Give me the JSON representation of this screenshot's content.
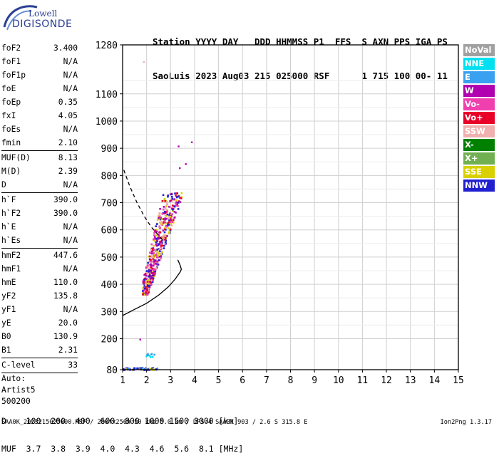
{
  "logo": {
    "line1": "Lowell",
    "line2": "DIGISONDE"
  },
  "header": {
    "line1": "Station YYYY DAY   DDD HHMMSS P1  FFS  S AXN PPS IGA PS",
    "line2": "SaoLuis 2023 Aug03 215 025000 RSF      1 715 100 00- 11"
  },
  "params": [
    {
      "k": "foF2",
      "v": "3.400"
    },
    {
      "k": "foF1",
      "v": "N/A"
    },
    {
      "k": "foF1p",
      "v": "N/A"
    },
    {
      "k": "foE",
      "v": "N/A"
    },
    {
      "k": "foEp",
      "v": "0.35"
    },
    {
      "k": "fxI",
      "v": "4.05"
    },
    {
      "k": "foEs",
      "v": "N/A"
    },
    {
      "k": "fmin",
      "v": "2.10"
    },
    {
      "k": "MUF(D)",
      "v": "8.13"
    },
    {
      "k": "M(D)",
      "v": "2.39"
    },
    {
      "k": "D",
      "v": "N/A"
    },
    {
      "k": "h`F",
      "v": "390.0"
    },
    {
      "k": "h`F2",
      "v": "390.0"
    },
    {
      "k": "h`E",
      "v": "N/A"
    },
    {
      "k": "h`Es",
      "v": "N/A"
    },
    {
      "k": "hmF2",
      "v": "447.6"
    },
    {
      "k": "hmF1",
      "v": "N/A"
    },
    {
      "k": "hmE",
      "v": "110.0"
    },
    {
      "k": "yF2",
      "v": "135.8"
    },
    {
      "k": "yF1",
      "v": "N/A"
    },
    {
      "k": "yE",
      "v": "20.0"
    },
    {
      "k": "B0",
      "v": "130.9"
    },
    {
      "k": "B1",
      "v": "2.31"
    },
    {
      "k": "C-level",
      "v": "33"
    }
  ],
  "auto": [
    "Auto:",
    "Artist5",
    "500200"
  ],
  "legend": [
    {
      "label": "NoVal",
      "color": "#a0a0a0"
    },
    {
      "label": "NNE",
      "color": "#00e0f0"
    },
    {
      "label": "E",
      "color": "#3aa0f0"
    },
    {
      "label": "W",
      "color": "#b000b0"
    },
    {
      "label": "Vo-",
      "color": "#f040b0"
    },
    {
      "label": "Vo+",
      "color": "#e80028"
    },
    {
      "label": "SSW",
      "color": "#f0b0b0"
    },
    {
      "label": "X-",
      "color": "#008000"
    },
    {
      "label": "X+",
      "color": "#70b050"
    },
    {
      "label": "SSE",
      "color": "#d8d000"
    },
    {
      "label": "NNW",
      "color": "#2020d0"
    }
  ],
  "muf_table": {
    "row1": "D    100  200  400  600  800 1000 1500 3000 [km]",
    "row2": "MUF  3.7  3.8  3.9  4.0  4.3  4.6  5.6  8.1 [MHz]"
  },
  "footer": {
    "left": "SAA0K_2023215025000.RSF / 280fx256h 50 kHz 5.0 km / DPS-4 SAA0K 903 / 2.6 S 315.8 E",
    "right": "Ion2Png 1.3.17"
  },
  "chart_data": {
    "type": "scatter",
    "xlabel": "",
    "ylabel": "",
    "xlim": [
      1,
      15
    ],
    "ylim": [
      80,
      1280
    ],
    "xticks": [
      1,
      2,
      3,
      4,
      5,
      6,
      7,
      8,
      9,
      10,
      11,
      12,
      13,
      14,
      15
    ],
    "yticks": [
      80,
      200,
      300,
      400,
      500,
      600,
      700,
      800,
      900,
      1000,
      1100,
      1280
    ],
    "grid": true,
    "series": [
      {
        "style": "solid",
        "color": "#000000",
        "x": [
          1.0,
          1.5,
          2.0,
          2.5,
          2.9,
          3.2,
          3.4,
          3.45,
          3.4,
          3.3
        ],
        "y": [
          285,
          308,
          330,
          360,
          390,
          420,
          445,
          455,
          470,
          490
        ]
      },
      {
        "style": "dashed",
        "color": "#000000",
        "x": [
          1.05,
          1.3,
          1.6,
          1.9,
          2.2,
          2.5,
          2.75
        ],
        "y": [
          820,
          760,
          700,
          650,
          610,
          580,
          555
        ]
      }
    ],
    "trace_clusters": [
      {
        "fmin": 1.8,
        "fmax": 3.6,
        "hmin": 365,
        "hmax": 740
      },
      {
        "fmin": 1.0,
        "fmax": 2.45,
        "hmin": 82,
        "hmax": 96
      },
      {
        "fmin": 1.9,
        "fmax": 2.3,
        "hmin": 130,
        "hmax": 150
      }
    ],
    "scattered_echoes": [
      {
        "f": 1.85,
        "h": 1220
      },
      {
        "f": 3.85,
        "h": 925
      },
      {
        "f": 3.6,
        "h": 845
      },
      {
        "f": 3.3,
        "h": 910
      },
      {
        "f": 1.7,
        "h": 200
      },
      {
        "f": 3.35,
        "h": 830
      }
    ]
  }
}
